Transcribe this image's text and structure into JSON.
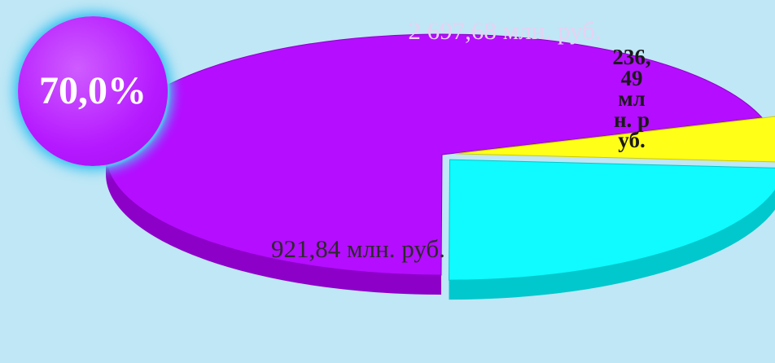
{
  "chart_data": {
    "type": "pie",
    "style": "3d-exploded",
    "slices": [
      {
        "label": "2 697,68 млн. руб.",
        "value": 2697.68,
        "color": "#b50dff",
        "side_color": "#8d00c8"
      },
      {
        "label": "236,49 млн. руб.",
        "value": 236.49,
        "color": "#ffff17",
        "side_color": "#cccc00"
      },
      {
        "label": "921,84 млн. руб.",
        "value": 921.84,
        "color": "#0ffbff",
        "side_color": "#00c8cd"
      }
    ]
  },
  "badge": {
    "text": "70,0%",
    "color": "#b519ff"
  }
}
